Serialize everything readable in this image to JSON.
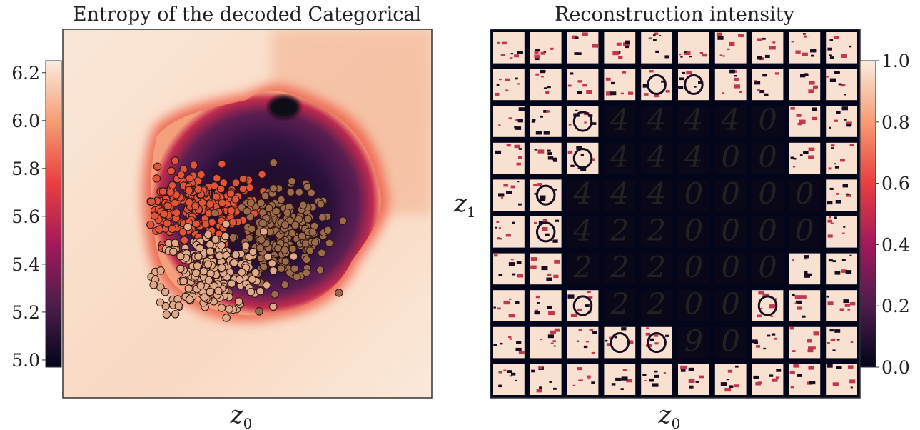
{
  "chart_data": [
    {
      "type": "heatmap",
      "title": "Entropy of the decoded Categorical",
      "xlabel": "z",
      "xlabel_sub": "0",
      "ylabel": "",
      "colorbar": {
        "position": "left",
        "range": [
          4.97,
          6.25
        ],
        "ticks": [
          "5.0",
          "5.2",
          "5.4",
          "5.6",
          "5.8",
          "6.0",
          "6.2"
        ],
        "tick_values": [
          5.0,
          5.2,
          5.4,
          5.6,
          5.8,
          6.0,
          6.2
        ]
      },
      "colormap": [
        "#03051A",
        "#4C1D4B",
        "#A11A5B",
        "#E83F3F",
        "#F69C73",
        "#FAEBDD"
      ],
      "overlay": {
        "type": "scatter",
        "clusters": [
          {
            "color": "#E0553A",
            "center": [
              0.36,
              0.52
            ],
            "spread": [
              0.16,
              0.09
            ],
            "count": 260
          },
          {
            "color": "#9A6A4A",
            "center": [
              0.6,
              0.44
            ],
            "spread": [
              0.12,
              0.11
            ],
            "count": 220
          },
          {
            "color": "#E0A98A",
            "center": [
              0.4,
              0.34
            ],
            "spread": [
              0.13,
              0.1
            ],
            "count": 240
          }
        ]
      },
      "grid": false
    },
    {
      "type": "heatmap",
      "title": "Reconstruction intensity",
      "xlabel": "z",
      "xlabel_sub": "0",
      "ylabel": "z",
      "ylabel_sub": "1",
      "grid_cells": [
        10,
        10
      ],
      "colorbar": {
        "position": "right",
        "range": [
          0.0,
          1.0
        ],
        "ticks": [
          "0.0",
          "0.2",
          "0.4",
          "0.6",
          "0.8",
          "1.0"
        ],
        "tick_values": [
          0.0,
          0.2,
          0.4,
          0.6,
          0.8,
          1.0
        ]
      },
      "colormap": [
        "#03051A",
        "#4C1D4B",
        "#A11A5B",
        "#E83F3F",
        "#F69C73",
        "#FAEBDD"
      ],
      "digits": [
        {
          "row": 2,
          "col": 3,
          "text": "4"
        },
        {
          "row": 2,
          "col": 4,
          "text": "4"
        },
        {
          "row": 2,
          "col": 5,
          "text": "4"
        },
        {
          "row": 2,
          "col": 6,
          "text": "4"
        },
        {
          "row": 2,
          "col": 7,
          "text": "0"
        },
        {
          "row": 3,
          "col": 3,
          "text": "4"
        },
        {
          "row": 3,
          "col": 4,
          "text": "4"
        },
        {
          "row": 3,
          "col": 5,
          "text": "4"
        },
        {
          "row": 3,
          "col": 6,
          "text": "0"
        },
        {
          "row": 3,
          "col": 7,
          "text": "0"
        },
        {
          "row": 4,
          "col": 2,
          "text": "4"
        },
        {
          "row": 4,
          "col": 3,
          "text": "4"
        },
        {
          "row": 4,
          "col": 4,
          "text": "4"
        },
        {
          "row": 4,
          "col": 5,
          "text": "0"
        },
        {
          "row": 4,
          "col": 6,
          "text": "0"
        },
        {
          "row": 4,
          "col": 7,
          "text": "0"
        },
        {
          "row": 4,
          "col": 8,
          "text": "0"
        },
        {
          "row": 5,
          "col": 2,
          "text": "4"
        },
        {
          "row": 5,
          "col": 3,
          "text": "2"
        },
        {
          "row": 5,
          "col": 4,
          "text": "2"
        },
        {
          "row": 5,
          "col": 5,
          "text": "0"
        },
        {
          "row": 5,
          "col": 6,
          "text": "0"
        },
        {
          "row": 5,
          "col": 7,
          "text": "0"
        },
        {
          "row": 5,
          "col": 8,
          "text": "0"
        },
        {
          "row": 6,
          "col": 2,
          "text": "2"
        },
        {
          "row": 6,
          "col": 3,
          "text": "2"
        },
        {
          "row": 6,
          "col": 4,
          "text": "2"
        },
        {
          "row": 6,
          "col": 5,
          "text": "0"
        },
        {
          "row": 6,
          "col": 6,
          "text": "0"
        },
        {
          "row": 6,
          "col": 7,
          "text": "0"
        },
        {
          "row": 7,
          "col": 3,
          "text": "2"
        },
        {
          "row": 7,
          "col": 4,
          "text": "2"
        },
        {
          "row": 7,
          "col": 5,
          "text": "0"
        },
        {
          "row": 7,
          "col": 6,
          "text": "0"
        },
        {
          "row": 8,
          "col": 5,
          "text": "9"
        },
        {
          "row": 8,
          "col": 6,
          "text": "0"
        }
      ]
    }
  ]
}
